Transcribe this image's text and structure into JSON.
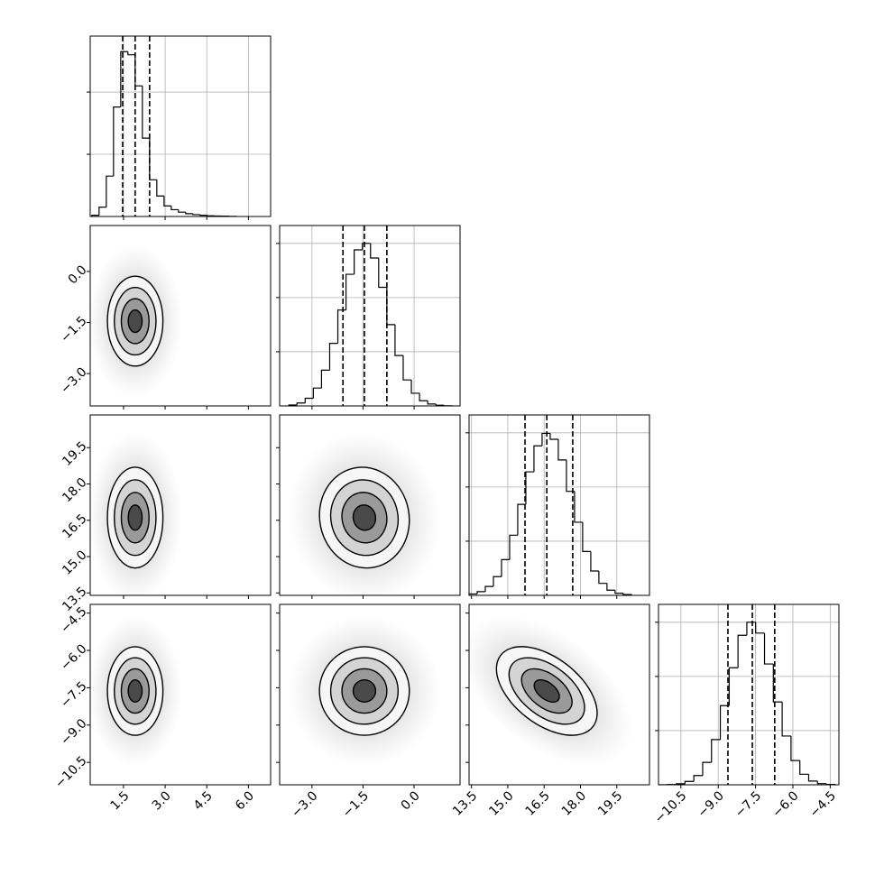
{
  "chart_data": {
    "type": "corner",
    "levels": [
      2,
      1.5,
      1,
      0.5
    ],
    "params": [
      {
        "xlim": [
          0.3,
          6.8
        ],
        "ticks": [
          {
            "value": 1.5,
            "label": "1.5"
          },
          {
            "value": 3,
            "label": "3.0"
          },
          {
            "value": 4.5,
            "label": "4.5"
          },
          {
            "value": 6,
            "label": "6.0"
          }
        ],
        "mean": 1.92,
        "sd": 0.5,
        "quantiles": [
          1.47,
          1.92,
          2.44
        ],
        "hist": {
          "bins": [
            0.36,
            0.62,
            0.88,
            1.14,
            1.4,
            1.66,
            1.92,
            2.18,
            2.44,
            2.7,
            2.96,
            3.22,
            3.48,
            3.74,
            4.0,
            4.26,
            4.52,
            4.78,
            5.04,
            5.3,
            5.56
          ],
          "counts": [
            20,
            150,
            650,
            1760,
            2650,
            2600,
            2100,
            1260,
            590,
            330,
            170,
            110,
            70,
            45,
            30,
            20,
            12,
            8,
            5,
            3
          ],
          "ylim": [
            0,
            2900
          ],
          "yticks": [
            1000,
            2000
          ]
        }
      },
      {
        "xlim": [
          -3.95,
          1.35
        ],
        "ticks": [
          {
            "value": -3,
            "label": "−3.0"
          },
          {
            "value": -1.5,
            "label": "−1.5"
          },
          {
            "value": 0,
            "label": "0.0"
          }
        ],
        "mean": -1.46,
        "sd": 0.66,
        "quantiles": [
          -2.09,
          -1.46,
          -0.8
        ],
        "hist": {
          "bins": [
            -3.68,
            -3.44,
            -3.2,
            -2.96,
            -2.72,
            -2.48,
            -2.24,
            -2.0,
            -1.76,
            -1.52,
            -1.28,
            -1.04,
            -0.8,
            -0.56,
            -0.32,
            -0.08,
            0.16,
            0.4,
            0.64,
            0.88,
            1.12
          ],
          "counts": [
            18,
            54,
            141,
            330,
            660,
            1155,
            1770,
            2430,
            2880,
            3000,
            2730,
            2190,
            1500,
            930,
            480,
            234,
            96,
            36,
            12,
            3
          ],
          "ylim": [
            0,
            3330
          ],
          "yticks": [
            1000,
            2000,
            3000
          ]
        }
      },
      {
        "xlim": [
          13.4,
          20.85
        ],
        "ticks": [
          {
            "value": 13.5,
            "label": "13.5"
          },
          {
            "value": 15,
            "label": "15.0"
          },
          {
            "value": 16.5,
            "label": "16.5"
          },
          {
            "value": 18,
            "label": "18.0"
          },
          {
            "value": 19.5,
            "label": "19.5"
          }
        ],
        "mean": 16.61,
        "sd": 1.04,
        "quantiles": [
          15.71,
          16.61,
          17.68
        ],
        "hist": {
          "bins": [
            13.4,
            13.735,
            14.07,
            14.405,
            14.74,
            15.075,
            15.41,
            15.745,
            16.08,
            16.415,
            16.75,
            17.085,
            17.42,
            17.755,
            18.09,
            18.425,
            18.76,
            19.095,
            19.43,
            19.765,
            20.1
          ],
          "counts": [
            26,
            69,
            165,
            345,
            660,
            1110,
            1680,
            2280,
            2760,
            2990,
            2880,
            2500,
            1920,
            1350,
            810,
            450,
            222,
            96,
            39,
            14
          ],
          "ylim": [
            0,
            3330
          ],
          "yticks": [
            1000,
            2000,
            3000
          ]
        }
      },
      {
        "xlim": [
          -11.4,
          -4.15
        ],
        "ticks": [
          {
            "value": -10.5,
            "label": "−10.5"
          },
          {
            "value": -9,
            "label": "−9.0"
          },
          {
            "value": -7.5,
            "label": "−7.5"
          },
          {
            "value": -6,
            "label": "−6.0"
          },
          {
            "value": -4.5,
            "label": "−4.5"
          }
        ],
        "mean": -7.63,
        "sd": 0.89,
        "quantiles": [
          -8.61,
          -7.63,
          -6.73
        ],
        "hist": {
          "bins": [
            -11.4,
            -11.045,
            -10.69,
            -10.335,
            -9.98,
            -9.625,
            -9.27,
            -8.915,
            -8.56,
            -8.205,
            -7.85,
            -7.495,
            -7.14,
            -6.785,
            -6.43,
            -6.075,
            -5.72,
            -5.365,
            -5.01,
            -4.655,
            -4.3
          ],
          "counts": [
            1,
            5,
            19,
            63,
            171,
            414,
            834,
            1461,
            2160,
            2760,
            3000,
            2800,
            2230,
            1530,
            900,
            447,
            195,
            69,
            22,
            6
          ],
          "ylim": [
            0,
            3330
          ],
          "yticks": [
            1000,
            2000,
            3000
          ]
        }
      }
    ],
    "panels": [
      {
        "corr": 0.0
      },
      {
        "corr": 0.0
      },
      {
        "corr": -0.05
      },
      {
        "corr": 0.0
      },
      {
        "corr": 0.0
      },
      {
        "corr": -0.5
      }
    ]
  }
}
